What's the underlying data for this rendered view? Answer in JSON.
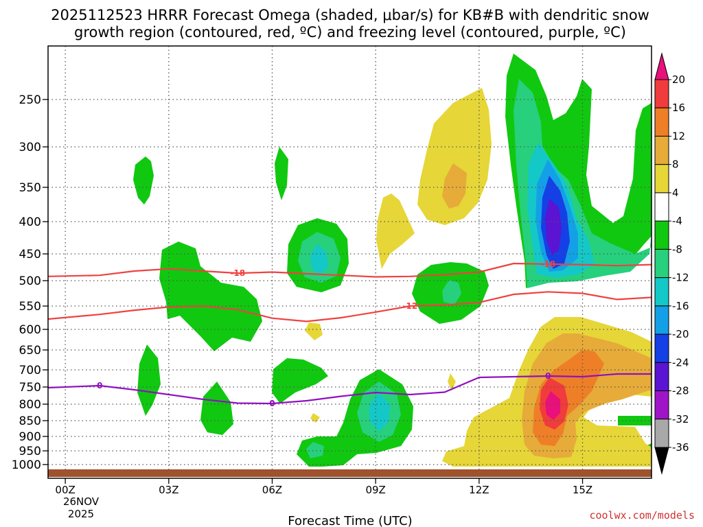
{
  "chart_data": {
    "type": "contour",
    "title": "2025112523 HRRR Forecast Omega (shaded, μbar/s) for KB#B with dendritic snow growth region (contoured, red, ºC) and freezing level (contoured, purple, ºC)",
    "title_lines": [
      "2025112523 HRRR Forecast Omega (shaded, μbar/s) for KB#B with dendritic snow",
      "growth region (contoured, red, ºC) and freezing level (contoured, purple, ºC)"
    ],
    "xlabel": "Forecast Time (UTC)",
    "ylabel": "",
    "xlim": [
      -0.5,
      17
    ],
    "x_ticks": [
      {
        "hour": 0,
        "label": "00Z",
        "date": "26NOV",
        "year": "2025"
      },
      {
        "hour": 3,
        "label": "03Z"
      },
      {
        "hour": 6,
        "label": "06Z"
      },
      {
        "hour": 9,
        "label": "09Z"
      },
      {
        "hour": 12,
        "label": "12Z"
      },
      {
        "hour": 15,
        "label": "15Z"
      }
    ],
    "y_ticks": [
      250,
      300,
      350,
      400,
      450,
      500,
      550,
      600,
      650,
      700,
      750,
      800,
      850,
      900,
      950,
      1000
    ],
    "colorbar": {
      "ticks": [
        "20",
        "16",
        "12",
        "8",
        "4",
        "-4",
        "-8",
        "-12",
        "-16",
        "-20",
        "-24",
        "-28",
        "-32",
        "-36"
      ],
      "colors": [
        "#e8107a",
        "#f03c3c",
        "#ee7f27",
        "#e6ab38",
        "#e6d638",
        "#ffffff",
        "#10c810",
        "#27d07c",
        "#14c8c8",
        "#14a0e6",
        "#1440e6",
        "#5a14d2",
        "#a014c8",
        "#a8a8a8",
        "#000000"
      ]
    },
    "dgz_contours": [
      {
        "level": "-18",
        "color": "#f04040",
        "points": [
          [
            -0.5,
            492
          ],
          [
            1,
            490
          ],
          [
            2,
            482
          ],
          [
            3,
            478
          ],
          [
            4,
            482
          ],
          [
            5,
            486
          ],
          [
            6,
            484
          ],
          [
            7,
            487
          ],
          [
            8,
            490
          ],
          [
            9,
            493
          ],
          [
            10,
            492
          ],
          [
            11,
            489
          ],
          [
            12,
            484
          ],
          [
            13,
            468
          ],
          [
            14,
            469
          ],
          [
            15,
            470
          ],
          [
            16,
            472
          ],
          [
            17,
            470
          ]
        ]
      },
      {
        "level": "-12",
        "color": "#f04040",
        "points": [
          [
            -0.5,
            578
          ],
          [
            1,
            568
          ],
          [
            2,
            559
          ],
          [
            3,
            552
          ],
          [
            4,
            550
          ],
          [
            5,
            558
          ],
          [
            6,
            576
          ],
          [
            7,
            583
          ],
          [
            8,
            575
          ],
          [
            9,
            563
          ],
          [
            10,
            550
          ],
          [
            11,
            548
          ],
          [
            12,
            543
          ],
          [
            13,
            527
          ],
          [
            14,
            522
          ],
          [
            15,
            525
          ],
          [
            16,
            537
          ],
          [
            17,
            533
          ]
        ]
      }
    ],
    "freezing_level": {
      "level": "0",
      "color": "#9010c0",
      "points": [
        [
          -0.5,
          752
        ],
        [
          1,
          746
        ],
        [
          2,
          758
        ],
        [
          3,
          772
        ],
        [
          4,
          786
        ],
        [
          5,
          797
        ],
        [
          6,
          798
        ],
        [
          7,
          790
        ],
        [
          8,
          777
        ],
        [
          9,
          766
        ],
        [
          10,
          772
        ],
        [
          11,
          765
        ],
        [
          12,
          722
        ],
        [
          13,
          720
        ],
        [
          14,
          718
        ],
        [
          15,
          720
        ],
        [
          16,
          712
        ],
        [
          17,
          712
        ]
      ]
    },
    "omega_regions": [
      {
        "value": "-4 to -8",
        "color": "#10c810",
        "center": [
          1.8,
          338
        ]
      },
      {
        "value": "-4 to -8",
        "color": "#10c810",
        "center": [
          3.8,
          520
        ]
      },
      {
        "value": "-4 to -8",
        "color": "#10c810",
        "center": [
          7,
          440
        ]
      },
      {
        "value": "-4 to -8",
        "color": "#10c810",
        "center": [
          9,
          800
        ]
      },
      {
        "value": "-4 to -8",
        "color": "#10c810",
        "center": [
          10.8,
          525
        ]
      },
      {
        "value": "-20 to -24",
        "color": "#1440e6",
        "center": [
          14,
          395
        ]
      },
      {
        "value": "4 to 8",
        "color": "#e6d638",
        "center": [
          10.8,
          320
        ]
      },
      {
        "value": "8 to 12",
        "color": "#e6ab38",
        "center": [
          11,
          355
        ]
      },
      {
        "value": ">20",
        "color": "#e8107a",
        "center": [
          14,
          785
        ]
      }
    ]
  },
  "credit": "coolwx.com/models"
}
